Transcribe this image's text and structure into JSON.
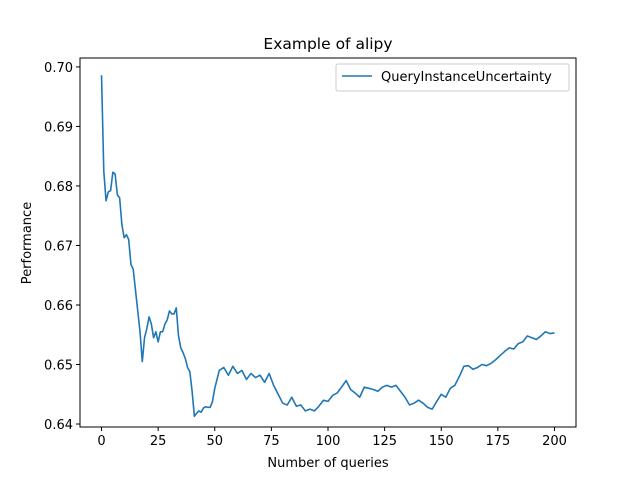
{
  "chart_data": {
    "type": "line",
    "title": "Example of alipy",
    "xlabel": "Number of queries",
    "ylabel": "Performance",
    "xlim": [
      -9.5,
      209.5
    ],
    "ylim": [
      0.6395,
      0.7015
    ],
    "xticks": [
      0,
      25,
      50,
      75,
      100,
      125,
      150,
      175,
      200
    ],
    "yticks": [
      0.64,
      0.65,
      0.66,
      0.67,
      0.68,
      0.69,
      0.7
    ],
    "ytick_labels": [
      "0.64",
      "0.65",
      "0.66",
      "0.67",
      "0.68",
      "0.69",
      "0.70"
    ],
    "grid": false,
    "legend_position": "top-right",
    "colors": {
      "series": "#1f77b4"
    },
    "series": [
      {
        "name": "QueryInstanceUncertainty",
        "x": [
          0,
          1,
          2,
          3,
          4,
          5,
          6,
          7,
          8,
          9,
          10,
          11,
          12,
          13,
          14,
          15,
          16,
          17,
          18,
          19,
          20,
          21,
          22,
          23,
          24,
          25,
          26,
          27,
          28,
          29,
          30,
          31,
          32,
          33,
          34,
          35,
          36,
          37,
          38,
          39,
          40,
          41,
          42,
          43,
          44,
          45,
          46,
          47,
          48,
          49,
          50,
          52,
          54,
          56,
          58,
          60,
          62,
          64,
          66,
          68,
          70,
          72,
          74,
          76,
          78,
          80,
          82,
          84,
          86,
          88,
          90,
          92,
          94,
          96,
          98,
          100,
          102,
          104,
          106,
          108,
          110,
          112,
          114,
          116,
          118,
          120,
          122,
          124,
          126,
          128,
          130,
          132,
          134,
          136,
          138,
          140,
          142,
          144,
          146,
          148,
          150,
          152,
          154,
          156,
          158,
          160,
          162,
          164,
          166,
          168,
          170,
          172,
          174,
          176,
          178,
          180,
          182,
          184,
          186,
          188,
          190,
          192,
          194,
          196,
          198,
          200
        ],
        "values": [
          0.6986,
          0.6825,
          0.6775,
          0.679,
          0.6792,
          0.6823,
          0.682,
          0.6785,
          0.678,
          0.6735,
          0.6713,
          0.6718,
          0.671,
          0.6668,
          0.666,
          0.6625,
          0.659,
          0.6555,
          0.6505,
          0.6545,
          0.656,
          0.658,
          0.6568,
          0.6545,
          0.6555,
          0.6538,
          0.6555,
          0.6555,
          0.6568,
          0.6575,
          0.659,
          0.6585,
          0.6585,
          0.6595,
          0.6548,
          0.6528,
          0.652,
          0.651,
          0.6495,
          0.6488,
          0.6455,
          0.6413,
          0.6418,
          0.6422,
          0.642,
          0.6427,
          0.6429,
          0.6428,
          0.6428,
          0.6438,
          0.646,
          0.649,
          0.6495,
          0.6482,
          0.6497,
          0.6485,
          0.649,
          0.6475,
          0.6485,
          0.6478,
          0.6482,
          0.647,
          0.6485,
          0.6465,
          0.645,
          0.6435,
          0.6432,
          0.6445,
          0.643,
          0.6432,
          0.6422,
          0.6425,
          0.6422,
          0.643,
          0.644,
          0.6438,
          0.6448,
          0.6452,
          0.6462,
          0.6473,
          0.6458,
          0.6452,
          0.6445,
          0.6462,
          0.646,
          0.6458,
          0.6455,
          0.6462,
          0.6465,
          0.6462,
          0.6465,
          0.6455,
          0.6445,
          0.6432,
          0.6435,
          0.644,
          0.6435,
          0.6428,
          0.6425,
          0.6438,
          0.645,
          0.6445,
          0.646,
          0.6465,
          0.648,
          0.6497,
          0.6498,
          0.6492,
          0.6495,
          0.65,
          0.6498,
          0.6502,
          0.6508,
          0.6515,
          0.6522,
          0.6528,
          0.6526,
          0.6535,
          0.6538,
          0.6548,
          0.6545,
          0.6542,
          0.6548,
          0.6555,
          0.6552,
          0.6553
        ]
      }
    ]
  }
}
